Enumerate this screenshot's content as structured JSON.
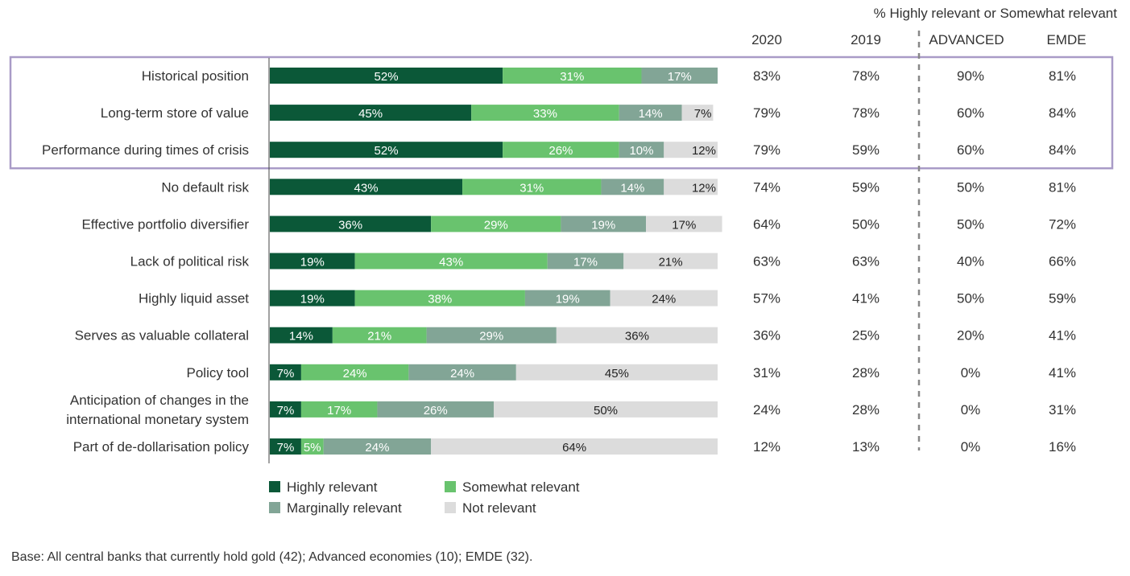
{
  "colors": {
    "highly": "#0b5838",
    "somewhat": "#69c36e",
    "marginally": "#82a596",
    "not": "#dcdcdc",
    "highlight_box": "#a99bc7"
  },
  "header": {
    "group_title": "% Highly relevant or Somewhat relevant",
    "columns": [
      "2020",
      "2019",
      "ADVANCED",
      "EMDE"
    ]
  },
  "chart_data": {
    "type": "bar",
    "orientation": "horizontal",
    "stacked": true,
    "xlim": [
      0,
      100
    ],
    "categories": [
      "Historical position",
      "Long-term store of value",
      "Performance during times of crisis",
      "No default risk",
      "Effective portfolio diversifier",
      "Lack of political risk",
      "Highly liquid asset",
      "Serves as valuable collateral",
      "Policy tool",
      "Anticipation of changes in the\ninternational monetary system",
      "Part of de-dollarisation policy"
    ],
    "series": [
      {
        "name": "Highly relevant",
        "values": [
          52,
          45,
          52,
          43,
          36,
          19,
          19,
          14,
          7,
          7,
          7
        ]
      },
      {
        "name": "Somewhat relevant",
        "values": [
          31,
          33,
          26,
          31,
          29,
          43,
          38,
          21,
          24,
          17,
          5
        ]
      },
      {
        "name": "Marginally relevant",
        "values": [
          17,
          14,
          10,
          14,
          19,
          17,
          19,
          29,
          24,
          26,
          24
        ]
      },
      {
        "name": "Not relevant",
        "values": [
          0,
          7,
          12,
          12,
          17,
          21,
          24,
          36,
          45,
          50,
          64
        ]
      }
    ],
    "legend_position": "bottom-left",
    "grid": false
  },
  "table": {
    "rows": [
      [
        "83%",
        "78%",
        "90%",
        "81%"
      ],
      [
        "79%",
        "78%",
        "60%",
        "84%"
      ],
      [
        "79%",
        "59%",
        "60%",
        "84%"
      ],
      [
        "74%",
        "59%",
        "50%",
        "81%"
      ],
      [
        "64%",
        "50%",
        "50%",
        "72%"
      ],
      [
        "63%",
        "63%",
        "40%",
        "66%"
      ],
      [
        "57%",
        "41%",
        "50%",
        "59%"
      ],
      [
        "36%",
        "25%",
        "20%",
        "41%"
      ],
      [
        "31%",
        "28%",
        "0%",
        "41%"
      ],
      [
        "24%",
        "28%",
        "0%",
        "31%"
      ],
      [
        "12%",
        "13%",
        "0%",
        "16%"
      ]
    ]
  },
  "highlighted_rows": [
    0,
    1,
    2
  ],
  "footnote": "Base: All central banks that currently hold gold (42); Advanced economies (10); EMDE (32)."
}
